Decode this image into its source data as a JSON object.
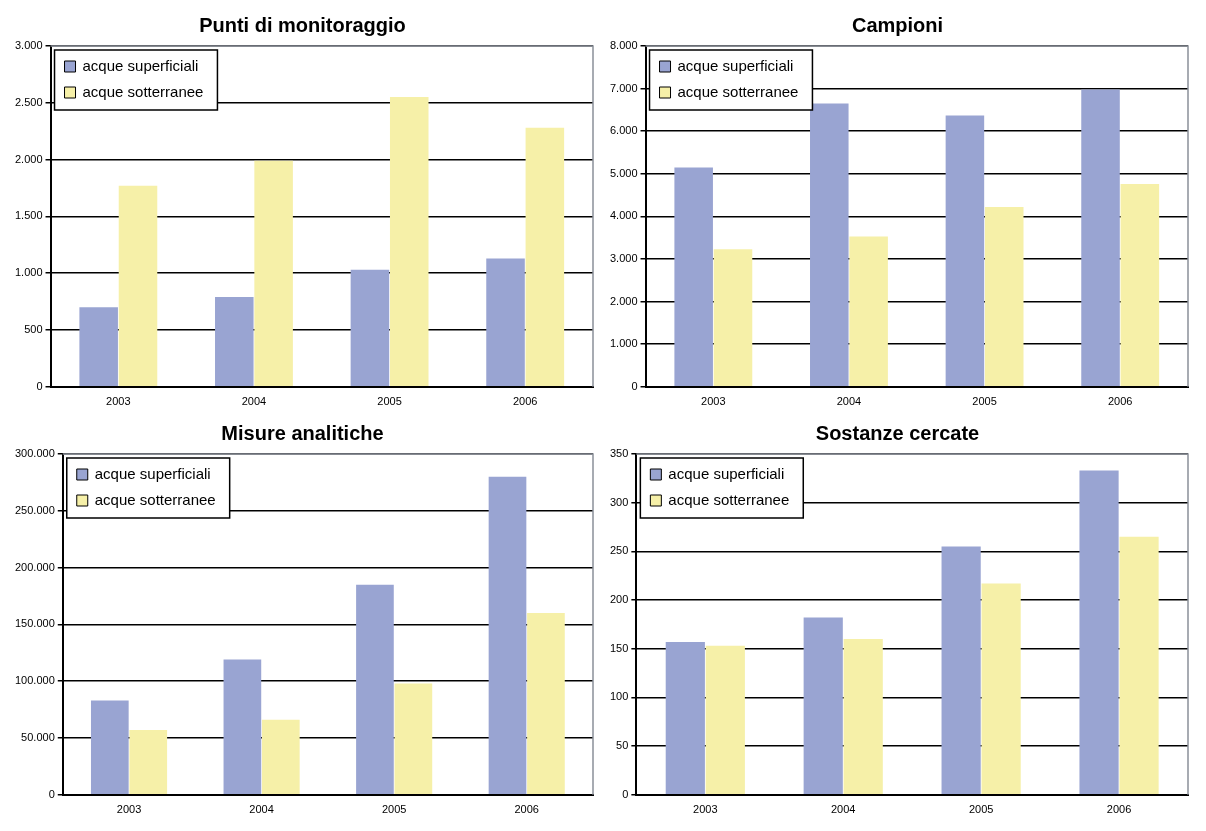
{
  "chart_data": [
    {
      "type": "bar",
      "title": "Punti di monitoraggio",
      "categories": [
        "2003",
        "2004",
        "2005",
        "2006"
      ],
      "series": [
        {
          "name": "acque superficiali",
          "color": "#99a4d2",
          "values": [
            700,
            790,
            1030,
            1130
          ]
        },
        {
          "name": "acque sotterranee",
          "color": "#f6f0a8",
          "values": [
            1770,
            1990,
            2550,
            2280
          ]
        }
      ],
      "ylim": [
        0,
        3000
      ],
      "yticks": [
        0,
        {
          "value": 500,
          "label": "500"
        },
        {
          "value": 1000,
          "label": "1.000"
        },
        {
          "value": 1500,
          "label": "1.500"
        },
        {
          "value": 2000,
          "label": "2.000"
        },
        {
          "value": 2500,
          "label": "2.500"
        },
        {
          "value": 3000,
          "label": "3.000"
        }
      ],
      "grid": "y",
      "legend": "top left"
    },
    {
      "type": "bar",
      "title": "Campioni",
      "categories": [
        "2003",
        "2004",
        "2005",
        "2006"
      ],
      "series": [
        {
          "name": "acque superficiali",
          "color": "#99a4d2",
          "values": [
            5150,
            6650,
            6370,
            6980
          ]
        },
        {
          "name": "acque sotterranee",
          "color": "#f6f0a8",
          "values": [
            3230,
            3530,
            4220,
            4760
          ]
        }
      ],
      "ylim": [
        0,
        8000
      ],
      "yticks": [
        0,
        {
          "value": 1000,
          "label": "1.000"
        },
        {
          "value": 2000,
          "label": "2.000"
        },
        {
          "value": 3000,
          "label": "3.000"
        },
        {
          "value": 4000,
          "label": "4.000"
        },
        {
          "value": 5000,
          "label": "5.000"
        },
        {
          "value": 6000,
          "label": "6.000"
        },
        {
          "value": 7000,
          "label": "7.000"
        },
        {
          "value": 8000,
          "label": "8.000"
        }
      ],
      "grid": "y",
      "legend": "top left"
    },
    {
      "type": "bar",
      "title": "Misure analitiche",
      "categories": [
        "2003",
        "2004",
        "2005",
        "2006"
      ],
      "series": [
        {
          "name": "acque superficiali",
          "color": "#99a4d2",
          "values": [
            83000,
            119000,
            185000,
            280000
          ]
        },
        {
          "name": "acque sotterranee",
          "color": "#f6f0a8",
          "values": [
            57000,
            66000,
            98000,
            160000
          ]
        }
      ],
      "ylim": [
        0,
        300000
      ],
      "yticks": [
        0,
        {
          "value": 50000,
          "label": "50.000"
        },
        {
          "value": 100000,
          "label": "100.000"
        },
        {
          "value": 150000,
          "label": "150.000"
        },
        {
          "value": 200000,
          "label": "200.000"
        },
        {
          "value": 250000,
          "label": "250.000"
        },
        {
          "value": 300000,
          "label": "300.000"
        }
      ],
      "grid": "y",
      "legend": "top left"
    },
    {
      "type": "bar",
      "title": "Sostanze cercate",
      "categories": [
        "2003",
        "2004",
        "2005",
        "2006"
      ],
      "series": [
        {
          "name": "acque superficiali",
          "color": "#99a4d2",
          "values": [
            157,
            182,
            255,
            333
          ]
        },
        {
          "name": "acque sotterranee",
          "color": "#f6f0a8",
          "values": [
            153,
            160,
            217,
            265
          ]
        }
      ],
      "ylim": [
        0,
        350
      ],
      "yticks": [
        0,
        50,
        100,
        150,
        200,
        250,
        300,
        350
      ],
      "grid": "y",
      "legend": "top left"
    }
  ]
}
